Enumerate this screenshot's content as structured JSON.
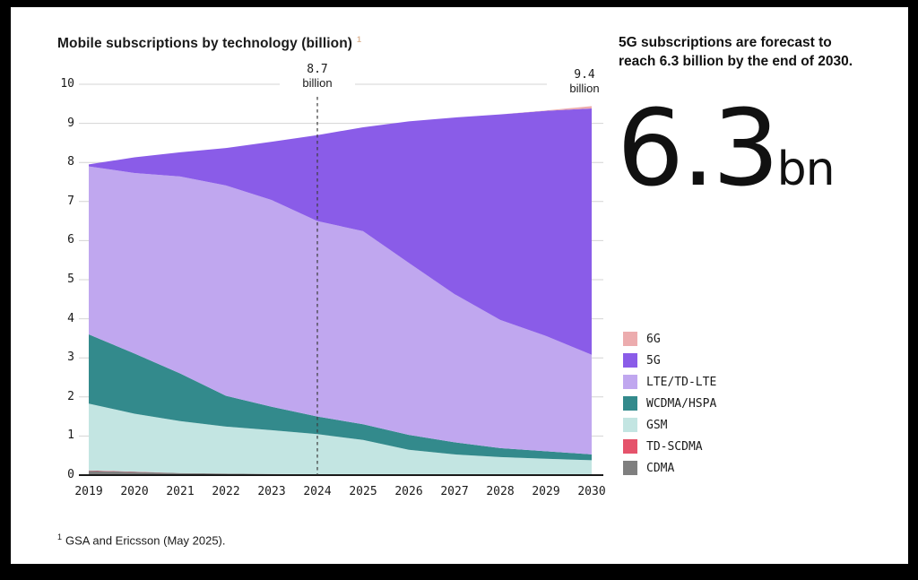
{
  "window": {
    "background": "#000000",
    "canvas_background": "#ffffff"
  },
  "chart": {
    "title": "Mobile subscriptions by technology (billion)",
    "title_superscript": "1"
  },
  "chart_data": {
    "type": "area",
    "stacked": true,
    "title": "Mobile subscriptions by technology (billion)",
    "xlabel": "",
    "ylabel": "",
    "ylim": [
      0,
      10
    ],
    "yticks": [
      0,
      1,
      2,
      3,
      4,
      5,
      6,
      7,
      8,
      9,
      10
    ],
    "grid": true,
    "legend_position": "right",
    "x": [
      2019,
      2020,
      2021,
      2022,
      2023,
      2024,
      2025,
      2026,
      2027,
      2028,
      2029,
      2030
    ],
    "series": [
      {
        "name": "CDMA",
        "color": "#7f7f7f",
        "values": [
          0.11,
          0.08,
          0.05,
          0.04,
          0.03,
          0.02,
          0.02,
          0.01,
          0.01,
          0.01,
          0.01,
          0.01
        ]
      },
      {
        "name": "TD-SCDMA",
        "color": "#e5536b",
        "values": [
          0.01,
          0.01,
          0.0,
          0.0,
          0.0,
          0.0,
          0.0,
          0.0,
          0.0,
          0.0,
          0.0,
          0.0
        ]
      },
      {
        "name": "GSM",
        "color": "#c3e5e2",
        "values": [
          1.71,
          1.48,
          1.33,
          1.2,
          1.12,
          1.03,
          0.88,
          0.64,
          0.52,
          0.45,
          0.41,
          0.37
        ]
      },
      {
        "name": "WCDMA/HSPA",
        "color": "#338a8c",
        "values": [
          1.77,
          1.54,
          1.22,
          0.79,
          0.6,
          0.45,
          0.4,
          0.38,
          0.31,
          0.23,
          0.19,
          0.15
        ]
      },
      {
        "name": "LTE/TD-LTE",
        "color": "#c0a7ef",
        "values": [
          4.3,
          4.62,
          5.04,
          5.38,
          5.29,
          5.0,
          4.94,
          4.4,
          3.79,
          3.28,
          2.95,
          2.55
        ]
      },
      {
        "name": "5G",
        "color": "#8a5ce8",
        "values": [
          0.05,
          0.4,
          0.62,
          0.96,
          1.49,
          2.2,
          2.66,
          3.62,
          4.52,
          5.26,
          5.76,
          6.3
        ]
      },
      {
        "name": "6G",
        "color": "#ecacae",
        "values": [
          0.0,
          0.0,
          0.0,
          0.0,
          0.0,
          0.0,
          0.0,
          0.0,
          0.0,
          0.0,
          0.01,
          0.06
        ]
      }
    ],
    "annotations": [
      {
        "x": 2024,
        "value_label": "8.7",
        "unit_label": "billion",
        "style": "dashed-line"
      },
      {
        "x": 2030,
        "value_label": "9.4",
        "unit_label": "billion",
        "style": "label-only"
      }
    ]
  },
  "callout": {
    "heading_line1": "5G subscriptions are forecast to",
    "heading_line2": "reach 6.3 billion by the end of 2030.",
    "big_value": "6.3",
    "big_unit": "bn"
  },
  "footnote": {
    "superscript": "1",
    "text": "GSA and Ericsson (May 2025)."
  }
}
